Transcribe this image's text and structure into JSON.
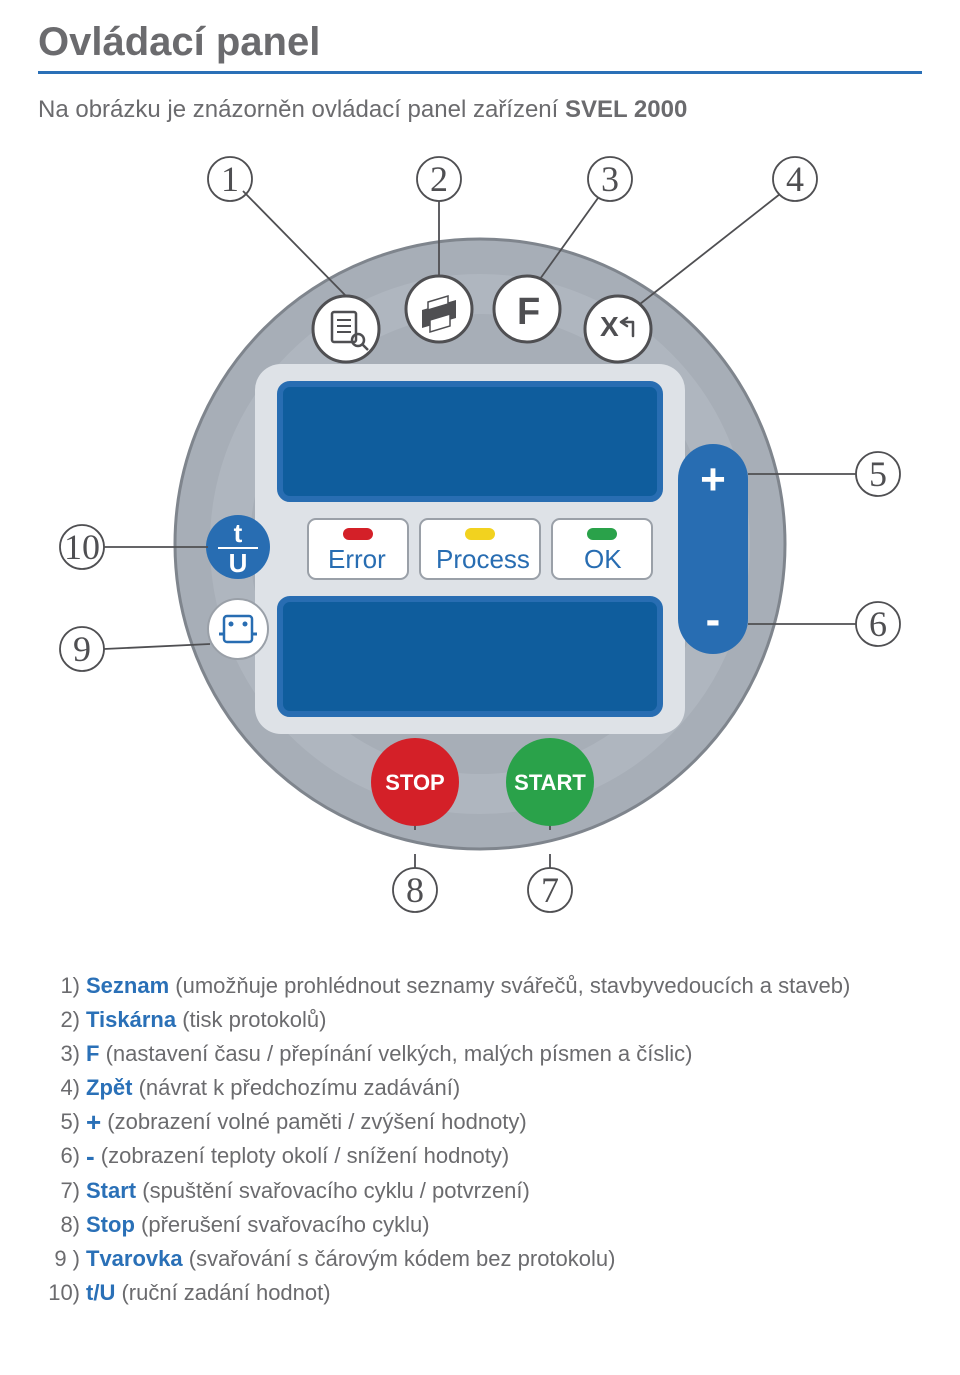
{
  "title": "Ovládací panel",
  "subtitle_prefix": "Na obrázku je znázorněn ovládací panel zařízení ",
  "subtitle_bold": "SVEL 2000",
  "panel": {
    "face_color": "#a7aeb7",
    "face_border": "#7f858d",
    "inner_color": "#dee2e7",
    "screen_color": "#0f5d9d",
    "screen_border": "#286db2",
    "white_btn_fill": "#ffffff",
    "white_btn_stroke": "#4f4f52",
    "plus_minus_fill": "#286db2",
    "stop_fill": "#d42028",
    "start_fill": "#2aa24a",
    "led_error": "#d42028",
    "led_process": "#f2d21f",
    "led_ok": "#2aa24a",
    "tu_fill": "#286db2",
    "callout_stroke": "#4f4f52",
    "indicators": {
      "error": "Error",
      "process": "Process",
      "ok": "OK"
    },
    "plus": "+",
    "minus": "-",
    "stop": "STOP",
    "start": "START",
    "f": "F",
    "x": "X",
    "t": "t",
    "u": "U"
  },
  "callouts": {
    "1": "1",
    "2": "2",
    "3": "3",
    "4": "4",
    "5": "5",
    "6": "6",
    "7": "7",
    "8": "8",
    "9": "9",
    "10": "10"
  },
  "legend": [
    {
      "n": "1)",
      "label": "Seznam",
      "rest": " (umožňuje prohlédnout seznamy svářečů, stavbyvedoucích a staveb)"
    },
    {
      "n": "2)",
      "label": "Tiskárna",
      "rest": " (tisk protokolů)"
    },
    {
      "n": "3)",
      "label": "F",
      "rest": " (nastavení času / přepínání velkých, malých písmen a číslic)"
    },
    {
      "n": "4)",
      "label": "Zpět",
      "rest": " (návrat k předchozímu zadávání)"
    },
    {
      "n": "5)",
      "sign": "+",
      "rest": " (zobrazení volné paměti / zvýšení hodnoty)"
    },
    {
      "n": "6)",
      "sign": "-",
      "rest": " (zobrazení teploty okolí / snížení hodnoty)"
    },
    {
      "n": "7)",
      "label": "Start",
      "rest": " (spuštění svařovacího cyklu / potvrzení)"
    },
    {
      "n": "8)",
      "label": "Stop",
      "rest": " (přerušení svařovacího cyklu)"
    },
    {
      "n": "9 )",
      "label": "Tvarovka",
      "rest": " (svařování s čárovým kódem bez protokolu)"
    },
    {
      "n": "10)",
      "label": "t/U",
      "rest": " (ruční zadání hodnot)"
    }
  ]
}
